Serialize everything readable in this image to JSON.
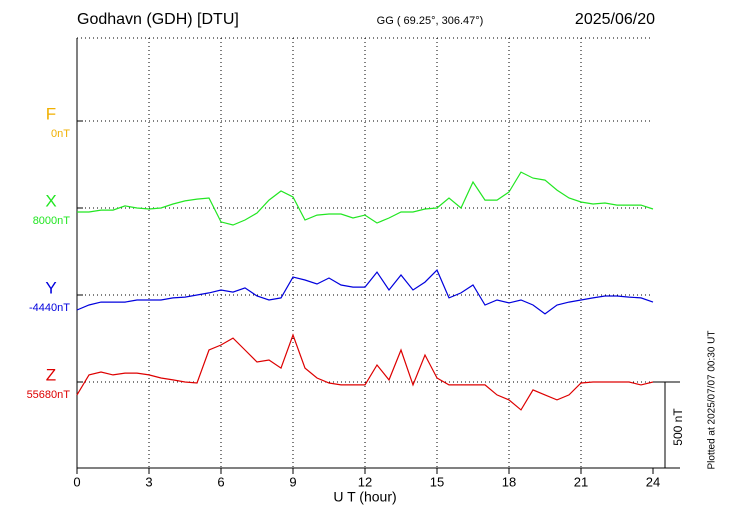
{
  "chart_data": {
    "type": "line",
    "title": "Godhavn (GDH)  [DTU]",
    "subtitle": "GG ( 69.25°, 306.47°)",
    "date": "2025/06/20",
    "x_label": "U T (hour)",
    "note": "Plotted at 2025/07/07 00:30 UT",
    "scale_bar": {
      "value": 500,
      "label": "500 nT"
    },
    "xlim": [
      0,
      24
    ],
    "xticks": [
      0,
      3,
      6,
      9,
      12,
      15,
      18,
      21,
      24
    ],
    "grid": true,
    "x": [
      0,
      0.5,
      1,
      1.5,
      2,
      2.5,
      3,
      3.5,
      4,
      4.5,
      5,
      5.5,
      6,
      6.5,
      7,
      7.5,
      8,
      8.5,
      9,
      9.5,
      10,
      10.5,
      11,
      11.5,
      12,
      12.5,
      13,
      13.5,
      14,
      14.5,
      15,
      15.5,
      16,
      16.5,
      17,
      17.5,
      18,
      18.5,
      19,
      19.5,
      20,
      20.5,
      21,
      21.5,
      22,
      22.5,
      23,
      23.5,
      24
    ],
    "series": [
      {
        "name": "F",
        "color": "#f0b000",
        "baseline": {
          "value": 0,
          "label": "0nT"
        }
      },
      {
        "name": "X",
        "color": "#22e622",
        "baseline": {
          "value": 8000,
          "label": "8000nT"
        },
        "values": [
          7977,
          7977,
          7988,
          7988,
          8012,
          8000,
          7994,
          8000,
          8023,
          8041,
          8052,
          8058,
          7919,
          7901,
          7930,
          7971,
          8046,
          8099,
          8064,
          7930,
          7959,
          7965,
          7965,
          7942,
          7959,
          7913,
          7942,
          7977,
          7977,
          7994,
          8000,
          8058,
          8000,
          8151,
          8046,
          8046,
          8093,
          8209,
          8174,
          8162,
          8104,
          8058,
          8035,
          8023,
          8029,
          8017,
          8017,
          8017,
          7994
        ]
      },
      {
        "name": "Y",
        "color": "#0000dd",
        "baseline": {
          "value": -4440,
          "label": "-4440nT"
        },
        "values": [
          -4527,
          -4498,
          -4481,
          -4481,
          -4481,
          -4469,
          -4469,
          -4469,
          -4457,
          -4452,
          -4440,
          -4428,
          -4411,
          -4423,
          -4399,
          -4446,
          -4469,
          -4457,
          -4336,
          -4353,
          -4376,
          -4341,
          -4382,
          -4394,
          -4394,
          -4307,
          -4411,
          -4324,
          -4411,
          -4365,
          -4295,
          -4457,
          -4428,
          -4382,
          -4498,
          -4469,
          -4486,
          -4469,
          -4498,
          -4550,
          -4498,
          -4481,
          -4469,
          -4457,
          -4446,
          -4446,
          -4452,
          -4457,
          -4481
        ]
      },
      {
        "name": "Z",
        "color": "#dd0000",
        "baseline": {
          "value": 55680,
          "label": "55680nT"
        },
        "values": [
          55605,
          55721,
          55738,
          55721,
          55732,
          55732,
          55721,
          55703,
          55692,
          55680,
          55674,
          55866,
          55895,
          55935,
          55866,
          55796,
          55808,
          55761,
          55953,
          55761,
          55703,
          55674,
          55663,
          55663,
          55663,
          55779,
          55692,
          55866,
          55663,
          55837,
          55703,
          55663,
          55663,
          55663,
          55663,
          55605,
          55576,
          55518,
          55634,
          55605,
          55576,
          55605,
          55674,
          55680,
          55680,
          55680,
          55680,
          55663,
          55680
        ]
      }
    ]
  }
}
